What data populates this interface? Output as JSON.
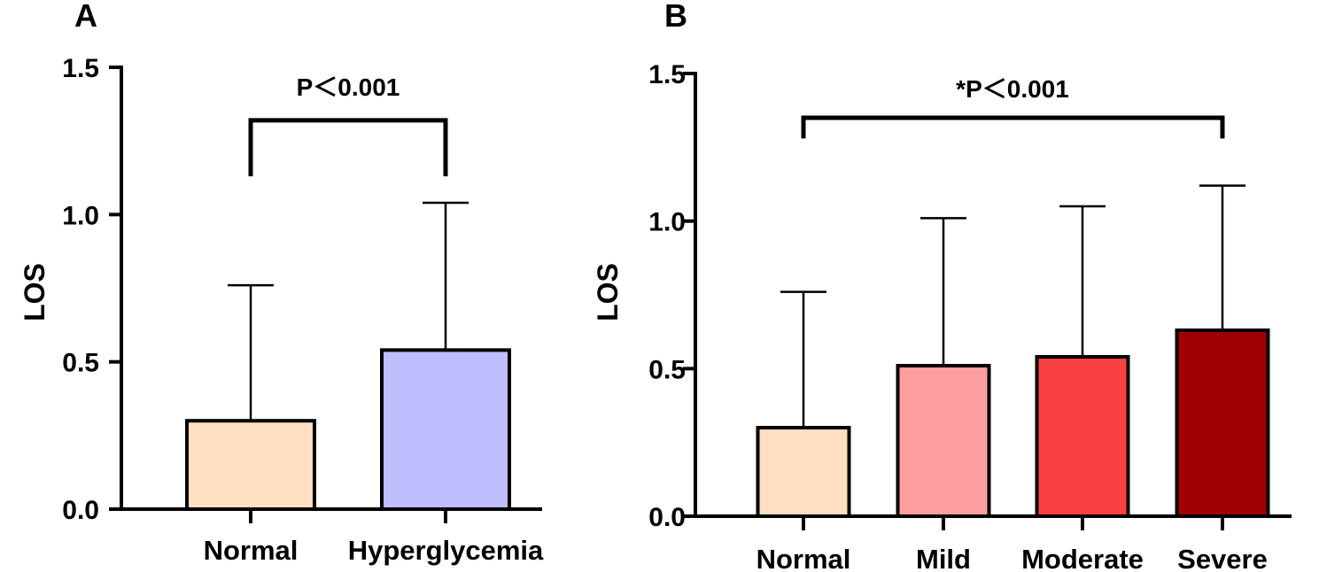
{
  "chart_data": [
    {
      "type": "bar",
      "panel_label": "A",
      "ylabel": "LOS",
      "ylim": [
        0,
        1.5
      ],
      "yticks": [
        "0.0",
        "0.5",
        "1.0",
        "1.5"
      ],
      "categories": [
        "Normal",
        "Hyperglycemia"
      ],
      "values": [
        0.3,
        0.54
      ],
      "error_upper": [
        0.76,
        1.04
      ],
      "colors": [
        "#FDDFC1",
        "#BEBEFE"
      ],
      "bracket": {
        "label": "P＜0.001",
        "from": "Normal",
        "to": "Hyperglycemia",
        "level": 1.32,
        "drop": 1.13
      }
    },
    {
      "type": "bar",
      "panel_label": "B",
      "ylabel": "LOS",
      "ylim": [
        0,
        1.5
      ],
      "yticks": [
        "0.0",
        "0.5",
        "1.0",
        "1.5"
      ],
      "categories": [
        "Normal",
        "Mild",
        "Moderate",
        "Severe"
      ],
      "values": [
        0.3,
        0.51,
        0.54,
        0.63
      ],
      "error_upper": [
        0.76,
        1.01,
        1.05,
        1.12
      ],
      "colors": [
        "#FDDFC1",
        "#FD9F9F",
        "#F84042",
        "#A00004"
      ],
      "bracket": {
        "label": "*P＜0.001",
        "from": "Normal",
        "to": "Severe",
        "level": 1.35,
        "drop": 1.28
      }
    }
  ]
}
